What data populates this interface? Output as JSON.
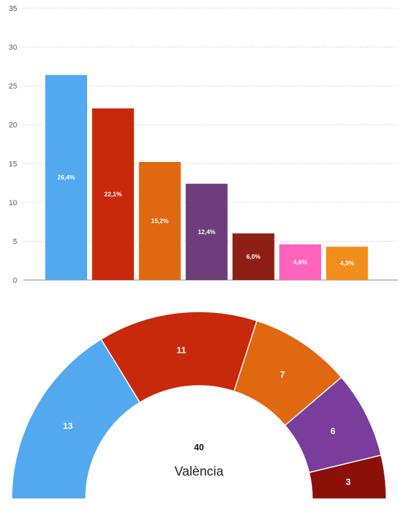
{
  "chart_data": [
    {
      "type": "bar",
      "ylim": [
        0,
        35
      ],
      "yticks": [
        "0",
        "5",
        "10",
        "15",
        "20",
        "25",
        "30",
        "35"
      ],
      "grid": true,
      "values": [
        26.4,
        22.1,
        15.2,
        12.4,
        6.0,
        4.6,
        4.3
      ],
      "data_labels": [
        "26,4%",
        "22,1%",
        "15,2%",
        "12,4%",
        "6,0%",
        "4,6%",
        "4,3%"
      ],
      "colors": [
        "#52a9f0",
        "#c9290b",
        "#e06811",
        "#6e3d7c",
        "#8e1f15",
        "#ff63bd",
        "#f28e1c"
      ]
    },
    {
      "type": "pie",
      "shape": "half-donut",
      "values": [
        13,
        11,
        7,
        6,
        3
      ],
      "labels": [
        "13",
        "11",
        "7",
        "6",
        "3"
      ],
      "colors": [
        "#52a9f0",
        "#c9290b",
        "#e06811",
        "#7a3d9c",
        "#8b1008"
      ],
      "total": "40",
      "center_label": "València"
    }
  ]
}
